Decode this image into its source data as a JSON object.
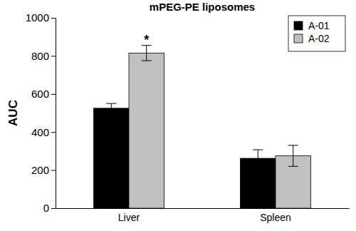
{
  "chart_data": {
    "type": "bar",
    "title": "mPEG-PE liposomes",
    "y_label": "AUC",
    "categories": [
      "Liver",
      "Spleen"
    ],
    "series": [
      {
        "name": "A-01",
        "color": "#000000",
        "values": [
          525,
          262
        ],
        "errors": [
          25,
          45
        ]
      },
      {
        "name": "A-02",
        "color": "#c0c0c0",
        "values": [
          815,
          275
        ],
        "errors": [
          40,
          55
        ]
      }
    ],
    "annotations": [
      {
        "text": "*",
        "category": "Liver",
        "series": "A-02"
      }
    ],
    "ylim": [
      0,
      1000
    ],
    "yticks": [
      0,
      200,
      400,
      600,
      800,
      1000
    ],
    "legend": "top-right",
    "grid": false
  }
}
